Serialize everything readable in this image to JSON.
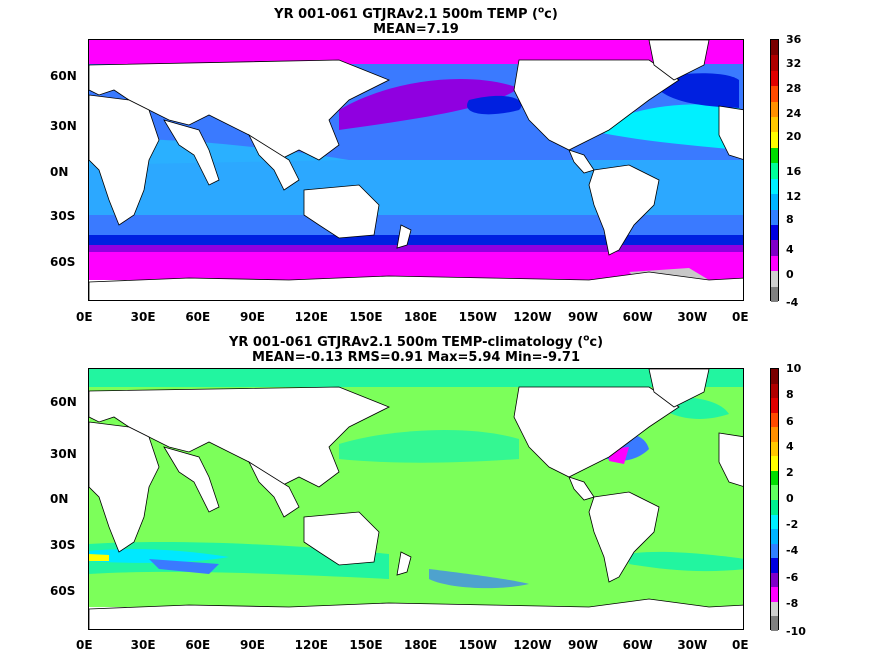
{
  "panels": [
    {
      "title_line1_pre": "YR 001-061 GTJRAv2.1 500m TEMP (",
      "title_unit_sup": "o",
      "title_unit_rest": "c)",
      "title_line2": "MEAN=7.19",
      "x_ticks": [
        "0E",
        "30E",
        "60E",
        "90E",
        "120E",
        "150E",
        "180E",
        "150W",
        "120W",
        "90W",
        "60W",
        "30W",
        "0E"
      ],
      "y_ticks": [
        "60N",
        "30N",
        "0N",
        "30S",
        "60S"
      ],
      "colorbar": {
        "ticks": [
          "36",
          "32",
          "28",
          "24",
          "20",
          "16",
          "12",
          "8",
          "4",
          "0",
          "-4"
        ],
        "colors": [
          "#7a0000",
          "#b00000",
          "#e00000",
          "#ff4a00",
          "#ff9000",
          "#ffc800",
          "#ffff00",
          "#00dd00",
          "#00ff9a",
          "#00f0ff",
          "#00b4ff",
          "#3080ff",
          "#0000e0",
          "#8000c8",
          "#ff00ff",
          "#d0d0d0",
          "#808080"
        ]
      },
      "ocean_colors": {
        "polar_north": "#ff00ff",
        "subpolar": "#9000e0",
        "deep_blue": "#0020e0",
        "mid_blue": "#3a7aff",
        "light_blue": "#2ab0ff",
        "cyan": "#00f0ff",
        "southern_magenta": "#ff00ff",
        "antarctic_gray": "#c8c8c8"
      }
    },
    {
      "title_line1_pre": "YR 001-061 GTJRAv2.1 500m TEMP-climatology (",
      "title_unit_sup": "o",
      "title_unit_rest": "c)",
      "title_line2": "MEAN=-0.13   RMS=0.91   Max=5.94   Min=-9.71",
      "x_ticks": [
        "0E",
        "30E",
        "60E",
        "90E",
        "120E",
        "150E",
        "180E",
        "150W",
        "120W",
        "90W",
        "60W",
        "30W",
        "0E"
      ],
      "y_ticks": [
        "60N",
        "30N",
        "0N",
        "30S",
        "60S"
      ],
      "colorbar": {
        "ticks": [
          "10",
          "8",
          "6",
          "4",
          "2",
          "0",
          "-2",
          "-4",
          "-6",
          "-8",
          "-10"
        ],
        "colors": [
          "#7a0000",
          "#b00000",
          "#e00000",
          "#ff4a00",
          "#ff9000",
          "#ffc800",
          "#ffff00",
          "#00dd00",
          "#60ff60",
          "#00f090",
          "#00f0ff",
          "#00b4ff",
          "#3080ff",
          "#0000e0",
          "#8000c8",
          "#ff00ff",
          "#d0d0d0",
          "#808080"
        ]
      },
      "ocean_colors": {
        "base_green": "#7cff5a",
        "aqua": "#22f5a0",
        "cyan": "#00e8ff",
        "blue": "#3a7aff",
        "yellow": "#ffff00",
        "magenta": "#ff00ff"
      }
    }
  ]
}
